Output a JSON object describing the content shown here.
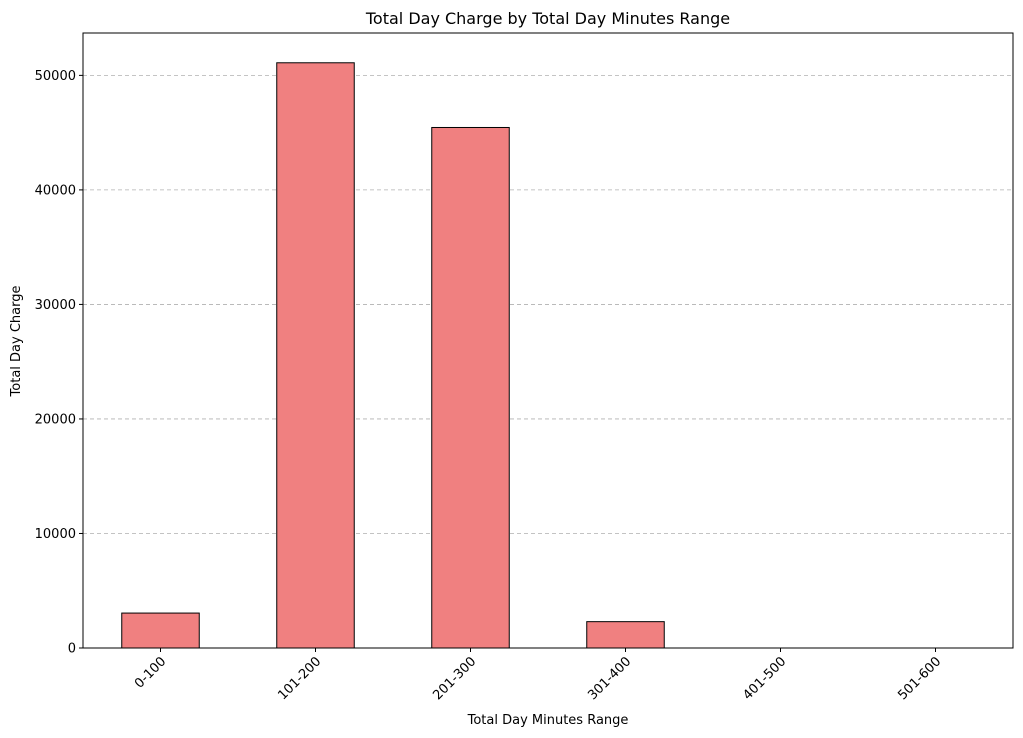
{
  "chart_data": {
    "type": "bar",
    "title": "Total Day Charge by Total Day Minutes Range",
    "xlabel": "Total Day Minutes Range",
    "ylabel": "Total Day Charge",
    "categories": [
      "0-100",
      "101-200",
      "201-300",
      "301-400",
      "401-500",
      "501-600"
    ],
    "values": [
      3050,
      51100,
      45450,
      2300,
      0,
      0
    ],
    "ylim": [
      0,
      53700
    ],
    "yticks": [
      0,
      10000,
      20000,
      30000,
      40000,
      50000
    ],
    "grid": "y-dashed",
    "bar_color": "#f08080",
    "bar_edge_color": "#000000"
  }
}
